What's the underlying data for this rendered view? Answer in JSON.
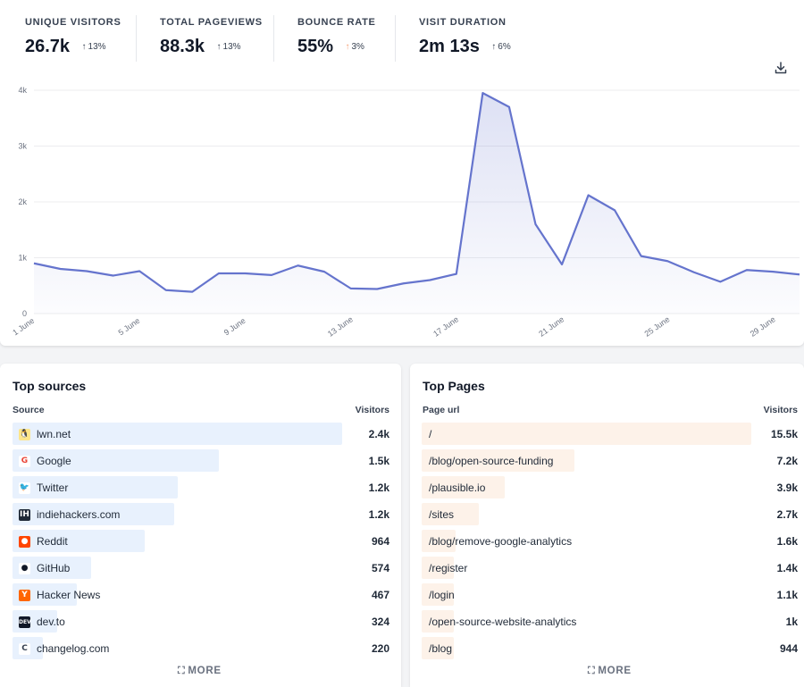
{
  "stats": [
    {
      "label": "UNIQUE VISITORS",
      "value": "26.7k",
      "change": "13%",
      "direction": "up",
      "arrow_color": "#4b5563"
    },
    {
      "label": "TOTAL PAGEVIEWS",
      "value": "88.3k",
      "change": "13%",
      "direction": "up",
      "arrow_color": "#4b5563"
    },
    {
      "label": "BOUNCE RATE",
      "value": "55%",
      "change": "3%",
      "direction": "up",
      "arrow_color": "#f59e72"
    },
    {
      "label": "VISIT DURATION",
      "value": "2m 13s",
      "change": "6%",
      "direction": "up",
      "arrow_color": "#4b5563"
    }
  ],
  "chart_data": {
    "type": "area",
    "x": [
      "1 June",
      "2 June",
      "3 June",
      "4 June",
      "5 June",
      "6 June",
      "7 June",
      "8 June",
      "9 June",
      "10 June",
      "11 June",
      "12 June",
      "13 June",
      "14 June",
      "15 June",
      "16 June",
      "17 June",
      "18 June",
      "19 June",
      "20 June",
      "21 June",
      "22 June",
      "23 June",
      "24 June",
      "25 June",
      "26 June",
      "27 June",
      "28 June",
      "29 June",
      "30 June"
    ],
    "values": [
      900,
      800,
      760,
      680,
      760,
      420,
      390,
      720,
      720,
      690,
      860,
      750,
      450,
      440,
      540,
      600,
      710,
      3950,
      3700,
      1600,
      880,
      2120,
      1850,
      1030,
      940,
      740,
      570,
      780,
      750,
      700
    ],
    "y_ticks": [
      "0",
      "1k",
      "2k",
      "3k",
      "4k"
    ],
    "ylim": [
      0,
      4000
    ],
    "x_tick_labels": [
      "1 June",
      "5 June",
      "9 June",
      "13 June",
      "17 June",
      "21 June",
      "25 June",
      "29 June"
    ],
    "line_color": "#6574cd",
    "grid": true
  },
  "sources": {
    "title": "Top sources",
    "col_source": "Source",
    "col_visitors": "Visitors",
    "more": "MORE",
    "max": 2400,
    "items": [
      {
        "name": "lwn.net",
        "value": "2.4k",
        "num": 2400,
        "icon": "penguin-icon",
        "glyph": "🐧",
        "icon_bg": "#fde68a",
        "icon_fg": "#92400e"
      },
      {
        "name": "Google",
        "value": "1.5k",
        "num": 1500,
        "icon": "google-icon",
        "glyph": "G",
        "icon_bg": "#ffffff",
        "icon_fg": "#ea4335"
      },
      {
        "name": "Twitter",
        "value": "1.2k",
        "num": 1200,
        "icon": "twitter-icon",
        "glyph": "🐦",
        "icon_bg": "#ffffff",
        "icon_fg": "#1da1f2"
      },
      {
        "name": "indiehackers.com",
        "value": "1.2k",
        "num": 1180,
        "icon": "indiehackers-icon",
        "glyph": "IH",
        "icon_bg": "#1f2937",
        "icon_fg": "#ffffff"
      },
      {
        "name": "Reddit",
        "value": "964",
        "num": 964,
        "icon": "reddit-icon",
        "glyph": "●",
        "icon_bg": "#ff4500",
        "icon_fg": "#ffffff"
      },
      {
        "name": "GitHub",
        "value": "574",
        "num": 574,
        "icon": "github-icon",
        "glyph": "●",
        "icon_bg": "#ffffff",
        "icon_fg": "#111827"
      },
      {
        "name": "Hacker News",
        "value": "467",
        "num": 467,
        "icon": "hackernews-icon",
        "glyph": "Y",
        "icon_bg": "#ff6600",
        "icon_fg": "#ffffff"
      },
      {
        "name": "dev.to",
        "value": "324",
        "num": 324,
        "icon": "devto-icon",
        "glyph": "DEV",
        "icon_bg": "#111827",
        "icon_fg": "#ffffff"
      },
      {
        "name": "changelog.com",
        "value": "220",
        "num": 220,
        "icon": "changelog-icon",
        "glyph": "C",
        "icon_bg": "#ffffff",
        "icon_fg": "#374151"
      }
    ]
  },
  "pages": {
    "title": "Top Pages",
    "col_url": "Page url",
    "col_visitors": "Visitors",
    "more": "MORE",
    "max": 15500,
    "items": [
      {
        "url": "/",
        "value": "15.5k",
        "num": 15500
      },
      {
        "url": "/blog/open-source-funding",
        "value": "7.2k",
        "num": 7200
      },
      {
        "url": "/plausible.io",
        "value": "3.9k",
        "num": 3900
      },
      {
        "url": "/sites",
        "value": "2.7k",
        "num": 2700
      },
      {
        "url": "/blog/remove-google-analytics",
        "value": "1.6k",
        "num": 1600
      },
      {
        "url": "/register",
        "value": "1.4k",
        "num": 1400
      },
      {
        "url": "/login",
        "value": "1.1k",
        "num": 1100
      },
      {
        "url": "/open-source-website-analytics",
        "value": "1k",
        "num": 1000
      },
      {
        "url": "/blog",
        "value": "944",
        "num": 944
      }
    ]
  }
}
